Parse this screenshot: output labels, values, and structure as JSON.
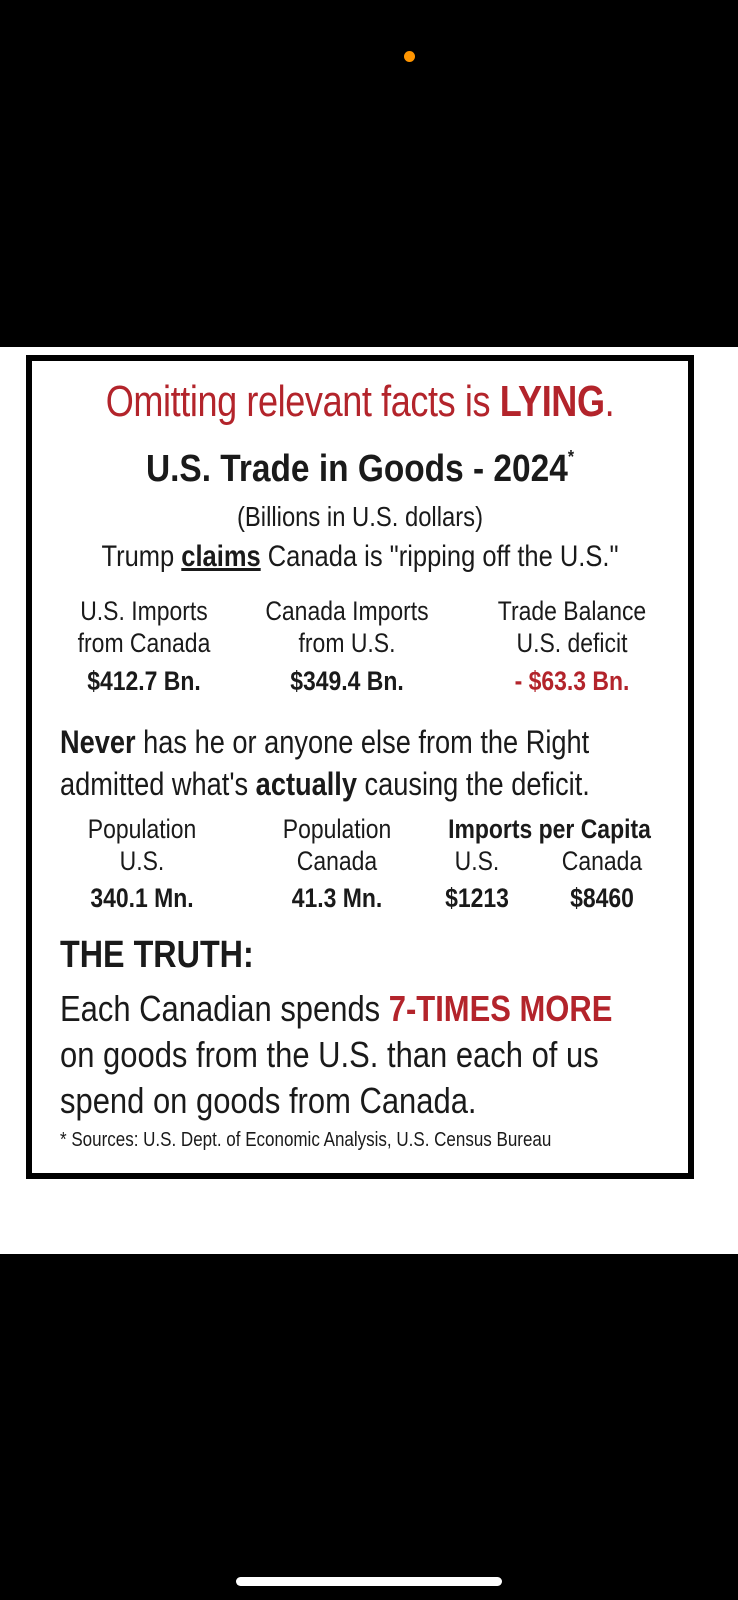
{
  "headline": {
    "prefix": "Omitting relevant facts is ",
    "emphasis": "LYING",
    "suffix": "."
  },
  "title": {
    "text": "U.S. Trade in Goods - 2024",
    "mark": "*"
  },
  "units": "(Billions in U.S. dollars)",
  "claim": {
    "prefix": "Trump ",
    "underlined": "claims",
    "suffix": " Canada is \"ripping off the U.S.\""
  },
  "trade": {
    "columns": [
      {
        "line1": "U.S. Imports",
        "line2": "from Canada",
        "value": "$412.7 Bn."
      },
      {
        "line1": "Canada Imports",
        "line2": "from U.S.",
        "value": "$349.4 Bn."
      },
      {
        "line1": "Trade Balance",
        "line2": "U.S. deficit",
        "value": "- $63.3 Bn."
      }
    ]
  },
  "paragraph": {
    "bold_start": "Never",
    "line1_rest": " has he or anyone else from the Right",
    "line2_start": "admitted what's ",
    "bold_mid": "actually",
    "line2_end": " causing the deficit."
  },
  "population": {
    "us": {
      "line1": "Population",
      "line2": "U.S.",
      "value": "340.1 Mn."
    },
    "canada": {
      "line1": "Population",
      "line2": "Canada",
      "value": "41.3 Mn."
    },
    "per_capita_header": "Imports per Capita",
    "per_capita_us": {
      "label": "U.S.",
      "value": "$1213"
    },
    "per_capita_canada": {
      "label": "Canada",
      "value": "$8460"
    }
  },
  "truth": {
    "title": "THE TRUTH:",
    "line1_start": "Each Canadian spends ",
    "line1_emphasis": "7-TIMES MORE",
    "line2": "on goods from the U.S. than each of us",
    "line3": "spend on goods from Canada."
  },
  "sources": "* Sources: U.S. Dept. of Economic Analysis, U.S. Census Bureau",
  "colors": {
    "accent_red": "#b3242b",
    "status_dot": "#ff9500"
  }
}
